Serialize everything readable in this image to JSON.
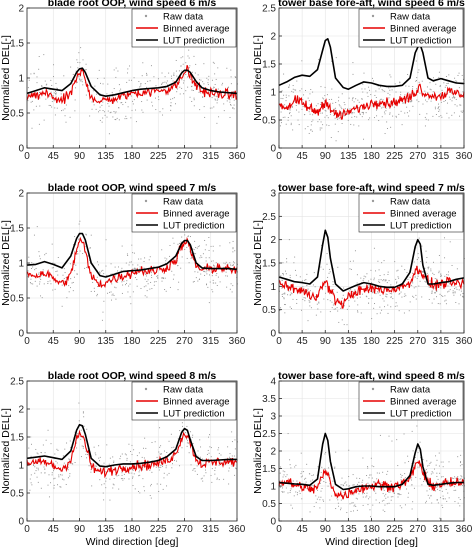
{
  "chart_data": [
    {
      "type": "line",
      "title": "blade root OOP, wind speed 6 m/s",
      "xlabel": "",
      "ylabel": "Normalized DEL[-]",
      "xlim": [
        0,
        360
      ],
      "ylim": [
        0,
        2
      ],
      "xticks": [
        0,
        45,
        90,
        135,
        180,
        225,
        270,
        315,
        360
      ],
      "xtick_labels": [
        "0",
        "45",
        "90",
        "135",
        "180",
        "225",
        "270",
        "315",
        "360"
      ],
      "yticks": [
        0,
        0.5,
        1,
        1.5,
        2
      ],
      "ytick_labels": [
        "0",
        "0.5",
        "1",
        "1.5",
        "2"
      ],
      "grid": true,
      "legend_position": "top-right",
      "legend": [
        "Raw data",
        "Binned average",
        "LUT prediction"
      ],
      "x": [
        0,
        15,
        30,
        45,
        60,
        75,
        85,
        90,
        95,
        100,
        110,
        125,
        135,
        150,
        165,
        180,
        195,
        210,
        225,
        240,
        255,
        265,
        270,
        275,
        280,
        290,
        300,
        315,
        330,
        345,
        360
      ],
      "series": [
        {
          "name": "LUT prediction",
          "color": "#000000",
          "values": [
            0.78,
            0.82,
            0.86,
            0.84,
            0.82,
            0.92,
            1.08,
            1.13,
            1.14,
            1.08,
            0.88,
            0.76,
            0.74,
            0.76,
            0.79,
            0.82,
            0.84,
            0.85,
            0.86,
            0.88,
            0.94,
            1.07,
            1.11,
            1.11,
            1.08,
            0.95,
            0.86,
            0.82,
            0.8,
            0.79,
            0.78
          ]
        },
        {
          "name": "Binned average",
          "color": "#e60000",
          "values": [
            0.72,
            0.74,
            0.78,
            0.73,
            0.66,
            0.78,
            0.98,
            1.06,
            1.1,
            0.96,
            0.74,
            0.66,
            0.68,
            0.7,
            0.74,
            0.78,
            0.8,
            0.8,
            0.82,
            0.84,
            0.88,
            1.02,
            1.04,
            1.18,
            1.0,
            0.9,
            0.82,
            0.78,
            0.77,
            0.76,
            0.76
          ]
        }
      ]
    },
    {
      "type": "line",
      "title": "tower base fore-aft, wind speed 6 m/s",
      "xlabel": "",
      "ylabel": "Normalized DEL[-]",
      "xlim": [
        0,
        360
      ],
      "ylim": [
        0,
        2.5
      ],
      "xticks": [
        0,
        45,
        90,
        135,
        180,
        225,
        270,
        315,
        360
      ],
      "xtick_labels": [
        "0",
        "45",
        "90",
        "135",
        "180",
        "225",
        "270",
        "315",
        "360"
      ],
      "yticks": [
        0,
        0.5,
        1,
        1.5,
        2,
        2.5
      ],
      "ytick_labels": [
        "0",
        "0.5",
        "1",
        "1.5",
        "2",
        "2.5"
      ],
      "grid": true,
      "legend_position": "top-right",
      "legend": [
        "Raw data",
        "Binned average",
        "LUT prediction"
      ],
      "x": [
        0,
        15,
        30,
        45,
        60,
        75,
        85,
        90,
        95,
        100,
        110,
        125,
        135,
        150,
        165,
        180,
        195,
        210,
        225,
        240,
        255,
        265,
        270,
        275,
        280,
        290,
        300,
        315,
        330,
        345,
        360
      ],
      "series": [
        {
          "name": "LUT prediction",
          "color": "#000000",
          "values": [
            1.12,
            1.18,
            1.26,
            1.3,
            1.28,
            1.4,
            1.75,
            1.92,
            1.95,
            1.8,
            1.25,
            1.08,
            1.05,
            1.12,
            1.18,
            1.16,
            1.12,
            1.1,
            1.1,
            1.12,
            1.25,
            1.7,
            1.8,
            1.84,
            1.7,
            1.25,
            1.2,
            1.24,
            1.2,
            1.16,
            1.15
          ]
        },
        {
          "name": "Binned average",
          "color": "#e60000",
          "values": [
            0.78,
            0.72,
            0.84,
            0.8,
            0.7,
            0.64,
            0.76,
            0.86,
            0.8,
            0.68,
            0.6,
            0.58,
            0.64,
            0.7,
            0.74,
            0.8,
            0.84,
            0.8,
            0.82,
            0.86,
            0.9,
            1.0,
            1.06,
            1.1,
            1.0,
            0.96,
            0.92,
            0.94,
            1.0,
            0.98,
            0.96
          ]
        }
      ]
    },
    {
      "type": "line",
      "title": "blade root OOP, wind speed 7 m/s",
      "xlabel": "",
      "ylabel": "Normalized DEL[-]",
      "xlim": [
        0,
        360
      ],
      "ylim": [
        0,
        2
      ],
      "xticks": [
        0,
        45,
        90,
        135,
        180,
        225,
        270,
        315,
        360
      ],
      "xtick_labels": [
        "0",
        "45",
        "90",
        "135",
        "180",
        "225",
        "270",
        "315",
        "360"
      ],
      "yticks": [
        0,
        0.5,
        1,
        1.5,
        2
      ],
      "ytick_labels": [
        "0",
        "0.5",
        "1",
        "1.5",
        "2"
      ],
      "grid": true,
      "legend_position": "top-right",
      "legend": [
        "Raw data",
        "Binned average",
        "LUT prediction"
      ],
      "x": [
        0,
        15,
        30,
        45,
        60,
        75,
        85,
        90,
        95,
        100,
        110,
        125,
        135,
        150,
        165,
        180,
        195,
        210,
        225,
        240,
        255,
        265,
        270,
        275,
        280,
        290,
        300,
        315,
        330,
        345,
        360
      ],
      "series": [
        {
          "name": "LUT prediction",
          "color": "#000000",
          "values": [
            0.97,
            0.98,
            1.02,
            0.98,
            0.93,
            1.1,
            1.35,
            1.42,
            1.42,
            1.33,
            1.0,
            0.82,
            0.8,
            0.84,
            0.88,
            0.89,
            0.9,
            0.92,
            0.94,
            0.99,
            1.1,
            1.28,
            1.32,
            1.32,
            1.26,
            1.0,
            0.93,
            0.92,
            0.92,
            0.92,
            0.91
          ]
        },
        {
          "name": "Binned average",
          "color": "#e60000",
          "values": [
            0.86,
            0.82,
            0.86,
            0.78,
            0.7,
            0.82,
            1.2,
            1.32,
            1.3,
            1.16,
            0.8,
            0.7,
            0.72,
            0.78,
            0.82,
            0.86,
            0.9,
            0.88,
            0.9,
            0.94,
            1.04,
            1.24,
            1.28,
            1.3,
            1.18,
            0.96,
            0.9,
            0.92,
            0.94,
            0.9,
            0.9
          ]
        }
      ]
    },
    {
      "type": "line",
      "title": "tower base fore-aft, wind speed 7 m/s",
      "xlabel": "",
      "ylabel": "Normalized DEL[-]",
      "xlim": [
        0,
        360
      ],
      "ylim": [
        0,
        3
      ],
      "xticks": [
        0,
        45,
        90,
        135,
        180,
        225,
        270,
        315,
        360
      ],
      "xtick_labels": [
        "0",
        "45",
        "90",
        "135",
        "180",
        "225",
        "270",
        "315",
        "360"
      ],
      "yticks": [
        0,
        0.5,
        1,
        1.5,
        2,
        2.5,
        3
      ],
      "ytick_labels": [
        "0",
        "0.5",
        "1",
        "1.5",
        "2",
        "2.5",
        "3"
      ],
      "grid": true,
      "legend_position": "top-right",
      "legend": [
        "Raw data",
        "Binned average",
        "LUT prediction"
      ],
      "x": [
        0,
        15,
        30,
        45,
        60,
        75,
        85,
        90,
        95,
        100,
        110,
        125,
        135,
        150,
        165,
        180,
        195,
        210,
        225,
        240,
        255,
        265,
        270,
        275,
        280,
        290,
        300,
        315,
        330,
        345,
        360
      ],
      "series": [
        {
          "name": "LUT prediction",
          "color": "#000000",
          "values": [
            1.2,
            1.15,
            1.1,
            1.08,
            1.05,
            1.2,
            1.9,
            2.2,
            2.05,
            1.6,
            1.05,
            0.9,
            0.95,
            1.02,
            1.08,
            1.05,
            1.0,
            0.98,
            0.98,
            1.05,
            1.3,
            1.85,
            2.0,
            1.9,
            1.45,
            1.05,
            1.05,
            1.08,
            1.1,
            1.15,
            1.18
          ]
        },
        {
          "name": "Binned average",
          "color": "#e60000",
          "values": [
            1.05,
            1.0,
            0.95,
            0.9,
            0.8,
            0.82,
            1.0,
            1.1,
            1.02,
            0.9,
            0.7,
            0.62,
            0.78,
            0.88,
            0.92,
            0.95,
            0.94,
            0.92,
            0.95,
            0.98,
            1.1,
            1.3,
            1.38,
            1.36,
            1.25,
            1.1,
            1.02,
            1.05,
            1.08,
            1.05,
            1.06
          ]
        }
      ]
    },
    {
      "type": "line",
      "title": "blade root OOP, wind speed 8 m/s",
      "xlabel": "Wind direction [deg]",
      "ylabel": "Normalized DEL[-]",
      "xlim": [
        0,
        360
      ],
      "ylim": [
        0,
        2.5
      ],
      "xticks": [
        0,
        45,
        90,
        135,
        180,
        225,
        270,
        315,
        360
      ],
      "xtick_labels": [
        "0",
        "45",
        "90",
        "135",
        "180",
        "225",
        "270",
        "315",
        "360"
      ],
      "yticks": [
        0,
        0.5,
        1,
        1.5,
        2,
        2.5
      ],
      "ytick_labels": [
        "0",
        "0.5",
        "1",
        "1.5",
        "2",
        "2.5"
      ],
      "grid": true,
      "legend_position": "top-right",
      "legend": [
        "Raw data",
        "Binned average",
        "LUT prediction"
      ],
      "x": [
        0,
        15,
        30,
        45,
        60,
        75,
        85,
        90,
        95,
        100,
        110,
        125,
        135,
        150,
        165,
        180,
        195,
        210,
        225,
        240,
        255,
        265,
        270,
        275,
        280,
        290,
        300,
        315,
        330,
        345,
        360
      ],
      "series": [
        {
          "name": "LUT prediction",
          "color": "#000000",
          "values": [
            1.12,
            1.14,
            1.16,
            1.13,
            1.1,
            1.25,
            1.62,
            1.72,
            1.7,
            1.55,
            1.12,
            0.98,
            0.97,
            1.0,
            1.02,
            1.02,
            1.03,
            1.05,
            1.08,
            1.15,
            1.28,
            1.58,
            1.65,
            1.62,
            1.45,
            1.15,
            1.08,
            1.08,
            1.09,
            1.1,
            1.1
          ]
        },
        {
          "name": "Binned average",
          "color": "#e60000",
          "values": [
            1.05,
            1.02,
            1.06,
            0.98,
            0.92,
            1.1,
            1.45,
            1.55,
            1.52,
            1.38,
            0.98,
            0.86,
            0.88,
            0.92,
            0.96,
            0.98,
            1.0,
            1.0,
            1.03,
            1.08,
            1.2,
            1.5,
            1.55,
            1.55,
            1.4,
            1.1,
            1.02,
            1.04,
            1.06,
            1.06,
            1.06
          ]
        }
      ]
    },
    {
      "type": "line",
      "title": "tower base fore-aft, wind speed 8 m/s",
      "xlabel": "Wind direction [deg]",
      "ylabel": "Normalized DEL[-]",
      "xlim": [
        0,
        360
      ],
      "ylim": [
        0,
        4
      ],
      "xticks": [
        0,
        45,
        90,
        135,
        180,
        225,
        270,
        315,
        360
      ],
      "xtick_labels": [
        "0",
        "45",
        "90",
        "135",
        "180",
        "225",
        "270",
        "315",
        "360"
      ],
      "yticks": [
        0,
        0.5,
        1,
        1.5,
        2,
        2.5,
        3,
        3.5,
        4
      ],
      "ytick_labels": [
        "0",
        "0.5",
        "1",
        "1.5",
        "2",
        "2.5",
        "3",
        "3.5",
        "4"
      ],
      "grid": true,
      "legend_position": "top-right",
      "legend": [
        "Raw data",
        "Binned average",
        "LUT prediction"
      ],
      "x": [
        0,
        15,
        30,
        45,
        60,
        75,
        85,
        90,
        95,
        100,
        110,
        125,
        135,
        150,
        165,
        180,
        195,
        210,
        225,
        240,
        255,
        265,
        270,
        275,
        280,
        290,
        300,
        315,
        330,
        345,
        360
      ],
      "series": [
        {
          "name": "LUT prediction",
          "color": "#000000",
          "values": [
            1.1,
            1.08,
            1.06,
            1.05,
            1.02,
            1.2,
            2.2,
            2.5,
            2.3,
            1.7,
            1.05,
            0.9,
            0.92,
            0.98,
            1.0,
            1.0,
            0.98,
            0.98,
            0.98,
            1.05,
            1.3,
            1.95,
            2.2,
            2.05,
            1.55,
            1.05,
            1.02,
            1.05,
            1.08,
            1.1,
            1.1
          ]
        },
        {
          "name": "Binned average",
          "color": "#e60000",
          "values": [
            1.08,
            1.12,
            1.02,
            0.98,
            0.9,
            0.95,
            1.3,
            1.4,
            1.32,
            1.1,
            0.8,
            0.7,
            0.8,
            0.9,
            0.95,
            1.0,
            1.05,
            1.0,
            1.02,
            1.06,
            1.2,
            1.55,
            1.72,
            1.65,
            1.35,
            1.08,
            1.02,
            1.05,
            1.08,
            1.06,
            1.06
          ]
        }
      ]
    }
  ]
}
